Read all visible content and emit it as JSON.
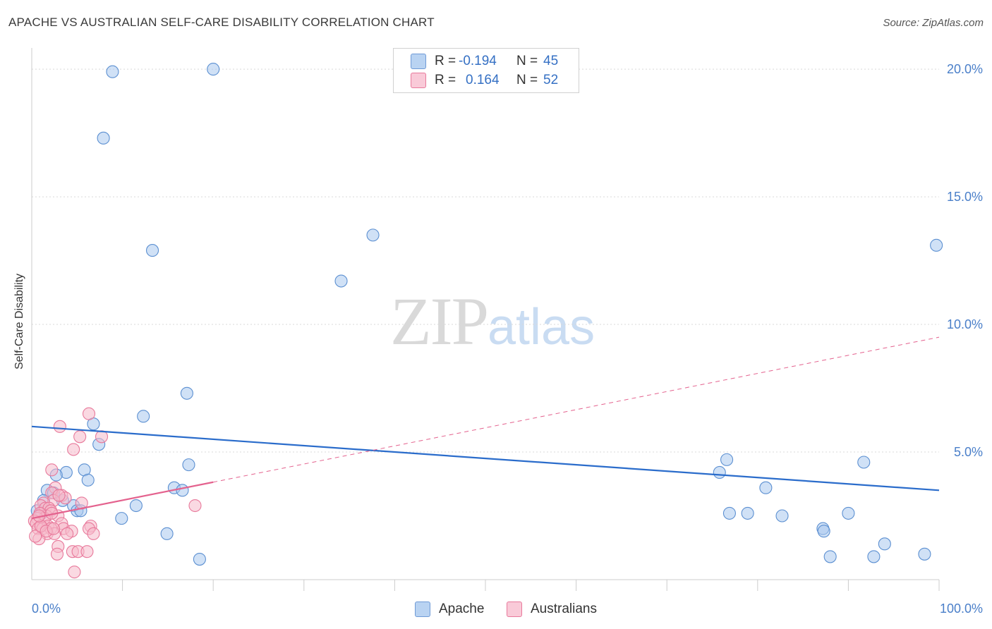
{
  "title": "APACHE VS AUSTRALIAN SELF-CARE DISABILITY CORRELATION CHART",
  "source": "Source: ZipAtlas.com",
  "watermark": {
    "zip": "ZIP",
    "atlas": "atlas"
  },
  "legend_stats": {
    "apache": {
      "r_label": "R =",
      "r_value": "-0.194",
      "n_label": "N =",
      "n_value": "45"
    },
    "australians": {
      "r_label": "R =",
      "r_value": "0.164",
      "n_label": "N =",
      "n_value": "52"
    }
  },
  "legend_bottom": {
    "apache": "Apache",
    "australians": "Australians"
  },
  "colors": {
    "apache_fill": "#a9c8ee",
    "apache_stroke": "#5b8fd1",
    "apache_line": "#2a6ccb",
    "aus_fill": "#f6b9cb",
    "aus_stroke": "#e8799b",
    "aus_line": "#e4628e",
    "grid": "#d9d9d9",
    "tick_text": "#4a7fc9"
  },
  "chart_data": {
    "type": "scatter",
    "title": "APACHE VS AUSTRALIAN SELF-CARE DISABILITY CORRELATION CHART",
    "xlabel": "",
    "ylabel": "Self-Care Disability",
    "xlim": [
      0,
      100
    ],
    "ylim": [
      0,
      20.5
    ],
    "x_tick_labels": [
      "0.0%",
      "100.0%"
    ],
    "y_ticks": [
      5,
      10,
      15,
      20
    ],
    "y_tick_labels": [
      "5.0%",
      "10.0%",
      "15.0%",
      "20.0%"
    ],
    "grid": true,
    "legend_position": "top-center",
    "series": [
      {
        "name": "Apache",
        "points": [
          [
            8.9,
            19.9
          ],
          [
            20.0,
            20.0
          ],
          [
            7.9,
            17.3
          ],
          [
            13.3,
            12.9
          ],
          [
            37.6,
            13.5
          ],
          [
            34.1,
            11.7
          ],
          [
            99.7,
            13.1
          ],
          [
            17.1,
            7.3
          ],
          [
            12.3,
            6.4
          ],
          [
            6.8,
            6.1
          ],
          [
            7.4,
            5.3
          ],
          [
            17.3,
            4.5
          ],
          [
            3.8,
            4.2
          ],
          [
            5.8,
            4.3
          ],
          [
            2.7,
            4.1
          ],
          [
            6.2,
            3.9
          ],
          [
            15.7,
            3.6
          ],
          [
            16.6,
            3.5
          ],
          [
            1.7,
            3.5
          ],
          [
            2.4,
            3.4
          ],
          [
            1.3,
            3.1
          ],
          [
            3.4,
            3.1
          ],
          [
            4.6,
            2.9
          ],
          [
            11.5,
            2.9
          ],
          [
            5.0,
            2.7
          ],
          [
            5.4,
            2.7
          ],
          [
            0.6,
            2.7
          ],
          [
            1.1,
            2.6
          ],
          [
            9.9,
            2.4
          ],
          [
            14.9,
            1.8
          ],
          [
            18.5,
            0.8
          ],
          [
            76.6,
            4.7
          ],
          [
            91.7,
            4.6
          ],
          [
            75.8,
            4.2
          ],
          [
            80.9,
            3.6
          ],
          [
            78.9,
            2.6
          ],
          [
            76.9,
            2.6
          ],
          [
            82.7,
            2.5
          ],
          [
            90.0,
            2.6
          ],
          [
            87.2,
            2.0
          ],
          [
            87.3,
            1.9
          ],
          [
            94.0,
            1.4
          ],
          [
            92.8,
            0.9
          ],
          [
            88.0,
            0.9
          ],
          [
            98.4,
            1.0
          ]
        ],
        "trend": {
          "x": [
            0,
            100
          ],
          "y": [
            6.0,
            3.5
          ]
        }
      },
      {
        "name": "Australians",
        "points": [
          [
            6.3,
            6.5
          ],
          [
            3.1,
            6.0
          ],
          [
            5.3,
            5.6
          ],
          [
            7.7,
            5.6
          ],
          [
            4.6,
            5.1
          ],
          [
            2.2,
            4.3
          ],
          [
            2.6,
            3.6
          ],
          [
            2.2,
            3.4
          ],
          [
            3.3,
            3.3
          ],
          [
            3.7,
            3.2
          ],
          [
            2.4,
            3.1
          ],
          [
            5.5,
            3.0
          ],
          [
            18.0,
            2.9
          ],
          [
            1.3,
            3.0
          ],
          [
            1.0,
            2.9
          ],
          [
            1.5,
            2.8
          ],
          [
            1.9,
            2.8
          ],
          [
            2.1,
            2.7
          ],
          [
            1.6,
            2.5
          ],
          [
            2.9,
            2.5
          ],
          [
            0.9,
            2.6
          ],
          [
            1.4,
            2.4
          ],
          [
            0.6,
            2.4
          ],
          [
            0.3,
            2.3
          ],
          [
            0.5,
            2.2
          ],
          [
            1.8,
            2.1
          ],
          [
            3.3,
            2.2
          ],
          [
            6.5,
            2.1
          ],
          [
            0.7,
            2.0
          ],
          [
            1.2,
            2.0
          ],
          [
            2.1,
            2.0
          ],
          [
            3.5,
            2.0
          ],
          [
            4.4,
            1.9
          ],
          [
            6.3,
            2.0
          ],
          [
            1.7,
            1.8
          ],
          [
            2.5,
            1.8
          ],
          [
            3.9,
            1.8
          ],
          [
            6.8,
            1.8
          ],
          [
            0.8,
            1.6
          ],
          [
            2.9,
            1.3
          ],
          [
            4.5,
            1.1
          ],
          [
            5.1,
            1.1
          ],
          [
            6.1,
            1.1
          ],
          [
            2.8,
            1.0
          ],
          [
            4.7,
            0.3
          ],
          [
            0.4,
            1.7
          ],
          [
            1.0,
            2.1
          ],
          [
            2.2,
            2.6
          ],
          [
            3.0,
            3.3
          ],
          [
            1.6,
            1.9
          ],
          [
            0.8,
            2.5
          ],
          [
            2.4,
            2.0
          ]
        ],
        "trend": {
          "x": [
            0,
            100
          ],
          "y": [
            2.4,
            9.5
          ],
          "solid_until_x": 20
        }
      }
    ]
  }
}
